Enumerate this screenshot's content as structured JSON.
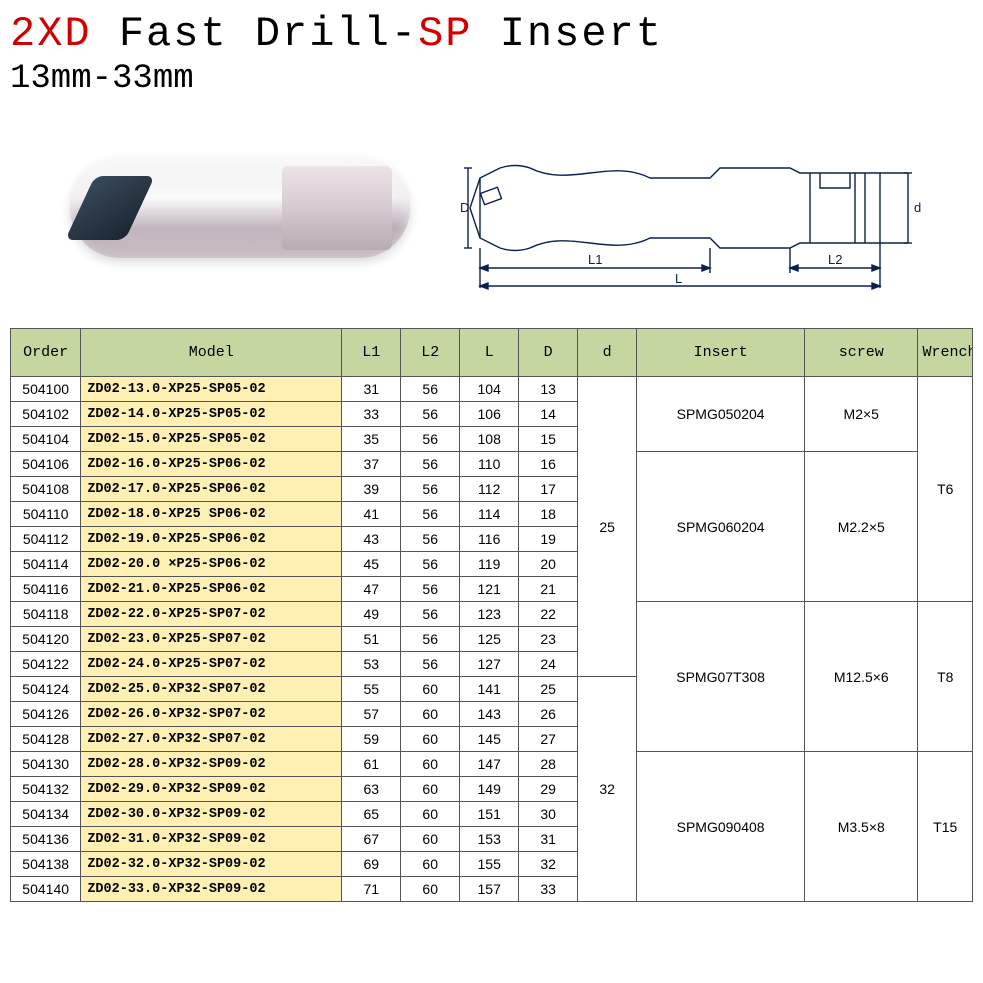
{
  "title": {
    "prefix": "2XD",
    "mid": " Fast Drill-",
    "sp": "SP",
    "suffix": " Insert"
  },
  "subtitle": "13mm-33mm",
  "diagram_labels": {
    "D": "D",
    "L1": "L1",
    "L2": "L2",
    "L": "L",
    "d": "d"
  },
  "headers": [
    "Order",
    "Model",
    "L1",
    "L2",
    "L",
    "D",
    "d",
    "Insert",
    "screw",
    "Wrench"
  ],
  "col_widths": [
    "62px",
    "230px",
    "52px",
    "52px",
    "52px",
    "52px",
    "52px",
    "148px",
    "100px",
    "48px"
  ],
  "header_bg": "#c6d6a0",
  "model_bg": "#feefb3",
  "border_color": "#555555",
  "rows": [
    {
      "order": "504100",
      "model": "ZD02-13.0-XP25-SP05-02",
      "l1": "31",
      "l2": "56",
      "l": "104",
      "D": "13"
    },
    {
      "order": "504102",
      "model": "ZD02-14.0-XP25-SP05-02",
      "l1": "33",
      "l2": "56",
      "l": "106",
      "D": "14"
    },
    {
      "order": "504104",
      "model": "ZD02-15.0-XP25-SP05-02",
      "l1": "35",
      "l2": "56",
      "l": "108",
      "D": "15"
    },
    {
      "order": "504106",
      "model": "ZD02-16.0-XP25-SP06-02",
      "l1": "37",
      "l2": "56",
      "l": "110",
      "D": "16"
    },
    {
      "order": "504108",
      "model": "ZD02-17.0-XP25-SP06-02",
      "l1": "39",
      "l2": "56",
      "l": "112",
      "D": "17"
    },
    {
      "order": "504110",
      "model": "ZD02-18.0-XP25 SP06-02",
      "l1": "41",
      "l2": "56",
      "l": "114",
      "D": "18"
    },
    {
      "order": "504112",
      "model": "ZD02-19.0-XP25-SP06-02",
      "l1": "43",
      "l2": "56",
      "l": "116",
      "D": "19"
    },
    {
      "order": "504114",
      "model": "ZD02-20.0 ×P25-SP06-02",
      "l1": "45",
      "l2": "56",
      "l": "119",
      "D": "20"
    },
    {
      "order": "504116",
      "model": "ZD02-21.0-XP25-SP06-02",
      "l1": "47",
      "l2": "56",
      "l": "121",
      "D": "21"
    },
    {
      "order": "504118",
      "model": "ZD02-22.0-XP25-SP07-02",
      "l1": "49",
      "l2": "56",
      "l": "123",
      "D": "22"
    },
    {
      "order": "504120",
      "model": "ZD02-23.0-XP25-SP07-02",
      "l1": "51",
      "l2": "56",
      "l": "125",
      "D": "23"
    },
    {
      "order": "504122",
      "model": "ZD02-24.0-XP25-SP07-02",
      "l1": "53",
      "l2": "56",
      "l": "127",
      "D": "24"
    },
    {
      "order": "504124",
      "model": "ZD02-25.0-XP32-SP07-02",
      "l1": "55",
      "l2": "60",
      "l": "141",
      "D": "25"
    },
    {
      "order": "504126",
      "model": "ZD02-26.0-XP32-SP07-02",
      "l1": "57",
      "l2": "60",
      "l": "143",
      "D": "26"
    },
    {
      "order": "504128",
      "model": "ZD02-27.0-XP32-SP07-02",
      "l1": "59",
      "l2": "60",
      "l": "145",
      "D": "27"
    },
    {
      "order": "504130",
      "model": "ZD02-28.0-XP32-SP09-02",
      "l1": "61",
      "l2": "60",
      "l": "147",
      "D": "28"
    },
    {
      "order": "504132",
      "model": "ZD02-29.0-XP32-SP09-02",
      "l1": "63",
      "l2": "60",
      "l": "149",
      "D": "29"
    },
    {
      "order": "504134",
      "model": "ZD02-30.0-XP32-SP09-02",
      "l1": "65",
      "l2": "60",
      "l": "151",
      "D": "30"
    },
    {
      "order": "504136",
      "model": "ZD02-31.0-XP32-SP09-02",
      "l1": "67",
      "l2": "60",
      "l": "153",
      "D": "31"
    },
    {
      "order": "504138",
      "model": "ZD02-32.0-XP32-SP09-02",
      "l1": "69",
      "l2": "60",
      "l": "155",
      "D": "32"
    },
    {
      "order": "504140",
      "model": "ZD02-33.0-XP32-SP09-02",
      "l1": "71",
      "l2": "60",
      "l": "157",
      "D": "33"
    }
  ],
  "d_groups": [
    {
      "start": 0,
      "span": 12,
      "value": "25"
    },
    {
      "start": 12,
      "span": 9,
      "value": "32"
    }
  ],
  "insert_groups": [
    {
      "start": 0,
      "span": 3,
      "value": "SPMG050204"
    },
    {
      "start": 3,
      "span": 6,
      "value": "SPMG060204"
    },
    {
      "start": 9,
      "span": 6,
      "value": "SPMG07T308"
    },
    {
      "start": 15,
      "span": 6,
      "value": "SPMG090408"
    }
  ],
  "screw_groups": [
    {
      "start": 0,
      "span": 3,
      "value": "M2×5"
    },
    {
      "start": 3,
      "span": 6,
      "value": "M2.2×5"
    },
    {
      "start": 9,
      "span": 6,
      "value": "M12.5×6"
    },
    {
      "start": 15,
      "span": 6,
      "value": "M3.5×8"
    }
  ],
  "wrench_groups": [
    {
      "start": 0,
      "span": 9,
      "value": "T6"
    },
    {
      "start": 9,
      "span": 6,
      "value": "T8"
    },
    {
      "start": 15,
      "span": 6,
      "value": "T15"
    }
  ]
}
